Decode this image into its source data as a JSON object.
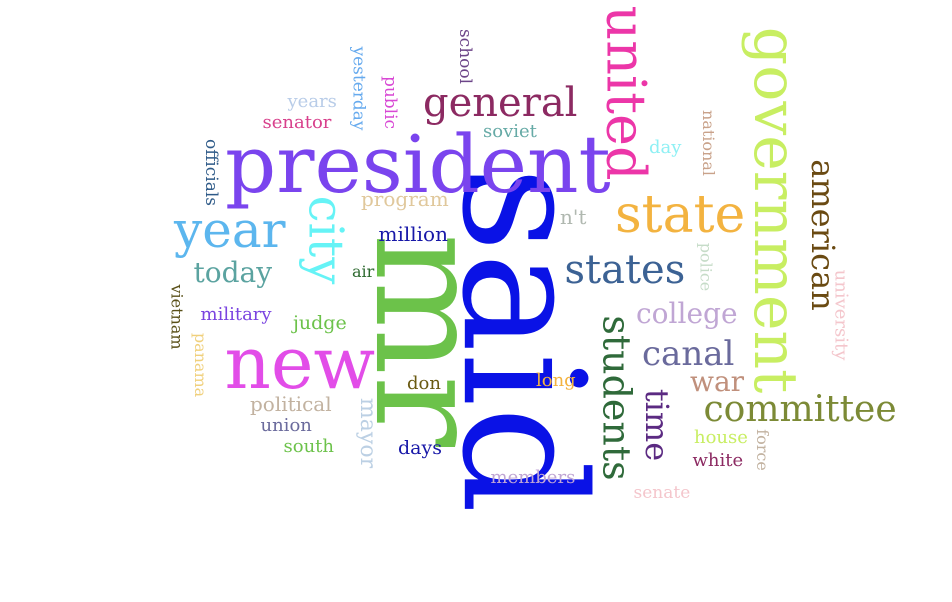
{
  "words": [
    {
      "text": "said",
      "color": "#0a12e6"
    },
    {
      "text": "mr",
      "color": "#6cc24a"
    },
    {
      "text": "president",
      "color": "#7a44ee"
    },
    {
      "text": "new",
      "color": "#e24de8"
    },
    {
      "text": "government",
      "color": "#c8ee62"
    },
    {
      "text": "united",
      "color": "#ec36a8"
    },
    {
      "text": "state",
      "color": "#f3b340"
    },
    {
      "text": "general",
      "color": "#8c2a62"
    },
    {
      "text": "year",
      "color": "#5cb6ee"
    },
    {
      "text": "city",
      "color": "#66f3f6"
    },
    {
      "text": "states",
      "color": "#3c6294"
    },
    {
      "text": "students",
      "color": "#2f6a3a"
    },
    {
      "text": "american",
      "color": "#6a4a12"
    },
    {
      "text": "committee",
      "color": "#7c8a36"
    },
    {
      "text": "time",
      "color": "#5b2a82"
    },
    {
      "text": "canal",
      "color": "#6a6a9c"
    },
    {
      "text": "today",
      "color": "#5ba3a0"
    },
    {
      "text": "college",
      "color": "#c0a6d4"
    },
    {
      "text": "war",
      "color": "#c0907c"
    },
    {
      "text": "mayor",
      "color": "#bcd0e4"
    },
    {
      "text": "university",
      "color": "#f4c6cc"
    },
    {
      "text": "program",
      "color": "#e0c89c"
    },
    {
      "text": "million",
      "color": "#1818a8"
    },
    {
      "text": "soviet",
      "color": "#66aaa6"
    },
    {
      "text": "n't",
      "color": "#b0b8b0"
    },
    {
      "text": "day",
      "color": "#8ef0f4"
    },
    {
      "text": "national",
      "color": "#c9a28a"
    },
    {
      "text": "police",
      "color": "#c6dcc8"
    },
    {
      "text": "school",
      "color": "#6c4488"
    },
    {
      "text": "yesterday",
      "color": "#66aaee"
    },
    {
      "text": "public",
      "color": "#d848d4"
    },
    {
      "text": "years",
      "color": "#b8cce8"
    },
    {
      "text": "senator",
      "color": "#d8408c"
    },
    {
      "text": "officials",
      "color": "#2e5a88"
    },
    {
      "text": "air",
      "color": "#2e6a30"
    },
    {
      "text": "military",
      "color": "#7a44e0"
    },
    {
      "text": "judge",
      "color": "#6cc24a"
    },
    {
      "text": "vietnam",
      "color": "#5a5018"
    },
    {
      "text": "panama",
      "color": "#f0d07c"
    },
    {
      "text": "political",
      "color": "#c2b2a0"
    },
    {
      "text": "union",
      "color": "#6a6a9c"
    },
    {
      "text": "south",
      "color": "#6cc24a"
    },
    {
      "text": "don",
      "color": "#6a5a12"
    },
    {
      "text": "long",
      "color": "#f3b340"
    },
    {
      "text": "days",
      "color": "#1818a8"
    },
    {
      "text": "members",
      "color": "#c0a6d4"
    },
    {
      "text": "house",
      "color": "#c8ee62"
    },
    {
      "text": "force",
      "color": "#c2b2a0"
    },
    {
      "text": "white",
      "color": "#8c2a62"
    },
    {
      "text": "senate",
      "color": "#f4c6cc"
    }
  ]
}
